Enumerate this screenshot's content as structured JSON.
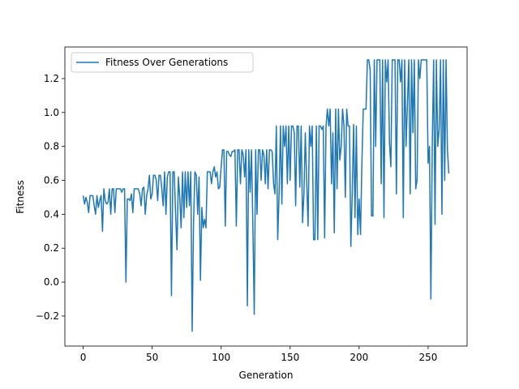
{
  "chart_data": {
    "type": "line",
    "xlabel": "Generation",
    "ylabel": "Fitness",
    "legend": "upper left",
    "x": [
      0,
      1,
      2,
      3,
      4,
      5,
      6,
      7,
      8,
      9,
      10,
      11,
      12,
      13,
      14,
      15,
      16,
      17,
      18,
      19,
      20,
      21,
      22,
      23,
      24,
      25,
      26,
      27,
      28,
      29,
      30,
      31,
      32,
      33,
      34,
      35,
      36,
      37,
      38,
      39,
      40,
      41,
      42,
      43,
      44,
      45,
      46,
      47,
      48,
      49,
      50,
      51,
      52,
      53,
      54,
      55,
      56,
      57,
      58,
      59,
      60,
      61,
      62,
      63,
      64,
      65,
      66,
      67,
      68,
      69,
      70,
      71,
      72,
      73,
      74,
      75,
      76,
      77,
      78,
      79,
      80,
      81,
      82,
      83,
      84,
      85,
      86,
      87,
      88,
      89,
      90,
      91,
      92,
      93,
      94,
      95,
      96,
      97,
      98,
      99,
      100,
      101,
      102,
      103,
      104,
      105,
      106,
      107,
      108,
      109,
      110,
      111,
      112,
      113,
      114,
      115,
      116,
      117,
      118,
      119,
      120,
      121,
      122,
      123,
      124,
      125,
      126,
      127,
      128,
      129,
      130,
      131,
      132,
      133,
      134,
      135,
      136,
      137,
      138,
      139,
      140,
      141,
      142,
      143,
      144,
      145,
      146,
      147,
      148,
      149,
      150,
      151,
      152,
      153,
      154,
      155,
      156,
      157,
      158,
      159,
      160,
      161,
      162,
      163,
      164,
      165,
      166,
      167,
      168,
      169,
      170,
      171,
      172,
      173,
      174,
      175,
      176,
      177,
      178,
      179,
      180,
      181,
      182,
      183,
      184,
      185,
      186,
      187,
      188,
      189,
      190,
      191,
      192,
      193,
      194,
      195,
      196,
      197,
      198,
      199,
      200,
      201,
      202,
      203,
      204,
      205,
      206,
      207,
      208,
      209,
      210,
      211,
      212,
      213,
      214,
      215,
      216,
      217,
      218,
      219,
      220,
      221,
      222,
      223,
      224,
      225,
      226,
      227,
      228,
      229,
      230,
      231,
      232,
      233,
      234,
      235,
      236,
      237,
      238,
      239,
      240,
      241,
      242,
      243,
      244,
      245,
      246,
      247,
      248,
      249,
      250,
      251,
      252,
      253,
      254,
      255,
      256,
      257,
      258,
      259,
      260,
      261,
      262,
      263,
      264,
      265
    ],
    "series": [
      {
        "name": "Fitness Over Generations",
        "color": "#1f77b4",
        "values": [
          0.51,
          0.46,
          0.5,
          0.47,
          0.41,
          0.51,
          0.51,
          0.51,
          0.45,
          0.4,
          0.51,
          0.44,
          0.48,
          0.51,
          0.3,
          0.55,
          0.48,
          0.46,
          0.47,
          0.55,
          0.4,
          0.55,
          0.55,
          0.41,
          0.55,
          0.55,
          0.55,
          0.55,
          0.53,
          0.55,
          0.55,
          0.0,
          0.49,
          0.49,
          0.48,
          0.52,
          0.41,
          0.55,
          0.55,
          0.55,
          0.55,
          0.52,
          0.45,
          0.55,
          0.56,
          0.4,
          0.51,
          0.55,
          0.63,
          0.49,
          0.52,
          0.63,
          0.63,
          0.6,
          0.48,
          0.63,
          0.63,
          0.55,
          0.45,
          0.65,
          0.4,
          0.62,
          0.65,
          0.65,
          -0.08,
          0.65,
          0.65,
          0.4,
          0.19,
          0.62,
          0.5,
          0.32,
          0.65,
          0.38,
          0.65,
          0.44,
          0.65,
          0.45,
          0.65,
          -0.29,
          0.35,
          0.65,
          0.63,
          0.4,
          0.62,
          0.01,
          0.44,
          0.32,
          0.37,
          0.32,
          0.65,
          0.65,
          0.65,
          0.58,
          0.65,
          0.68,
          0.62,
          0.65,
          0.55,
          0.56,
          0.68,
          0.78,
          0.78,
          0.33,
          0.77,
          0.77,
          0.75,
          0.74,
          0.77,
          0.77,
          0.78,
          0.33,
          0.78,
          0.78,
          0.58,
          0.78,
          0.75,
          0.62,
          0.78,
          -0.14,
          0.78,
          0.53,
          0.78,
          0.33,
          -0.19,
          0.78,
          0.4,
          0.78,
          0.78,
          0.6,
          0.78,
          0.75,
          0.58,
          0.78,
          0.55,
          0.78,
          0.78,
          0.77,
          0.58,
          0.52,
          0.92,
          0.25,
          0.52,
          0.92,
          0.46,
          0.92,
          0.8,
          0.92,
          0.58,
          0.92,
          0.6,
          0.92,
          0.92,
          0.88,
          0.45,
          0.92,
          0.92,
          0.56,
          0.92,
          0.35,
          0.52,
          0.88,
          0.59,
          0.33,
          0.92,
          0.8,
          0.92,
          0.25,
          0.25,
          0.92,
          0.25,
          0.92,
          0.92,
          0.9,
          0.92,
          0.26,
          0.92,
          1.02,
          0.92,
          1.02,
          0.58,
          0.88,
          0.29,
          1.02,
          0.55,
          1.02,
          0.72,
          0.8,
          1.02,
          0.92,
          0.5,
          1.02,
          0.92,
          0.92,
          0.21,
          0.52,
          0.93,
          0.38,
          0.92,
          0.28,
          0.49,
          0.28,
          0.7,
          1.02,
          1.02,
          1.02,
          1.31,
          1.31,
          1.25,
          0.39,
          0.39,
          1.31,
          0.8,
          1.31,
          1.31,
          1.31,
          0.58,
          1.31,
          0.38,
          1.31,
          1.18,
          1.31,
          0.82,
          0.68,
          1.31,
          1.31,
          1.31,
          0.52,
          1.31,
          1.31,
          1.18,
          1.31,
          0.38,
          1.31,
          0.8,
          1.05,
          1.31,
          0.52,
          1.31,
          0.88,
          1.31,
          0.55,
          0.6,
          1.31,
          1.2,
          1.31,
          1.31,
          1.31,
          1.31,
          1.31,
          0.7,
          0.8,
          -0.1,
          0.8,
          1.31,
          0.34,
          1.31,
          0.8,
          0.9,
          1.31,
          0.4,
          1.31,
          0.6,
          1.31,
          0.78,
          0.64
        ]
      }
    ],
    "xlim": [
      -13.25,
      278.25
    ],
    "xticks": [
      0,
      50,
      100,
      150,
      200,
      250
    ],
    "ylim": [
      -0.377,
      1.386
    ],
    "yticks": [
      {
        "value": -0.2,
        "label": "−0.2"
      },
      {
        "value": 0,
        "label": "0.0"
      },
      {
        "value": 0.2,
        "label": "0.2"
      },
      {
        "value": 0.4,
        "label": "0.4"
      },
      {
        "value": 0.6,
        "label": "0.6"
      },
      {
        "value": 0.8,
        "label": "0.8"
      },
      {
        "value": 1.0,
        "label": "1.0"
      },
      {
        "value": 1.2,
        "label": "1.2"
      }
    ]
  }
}
